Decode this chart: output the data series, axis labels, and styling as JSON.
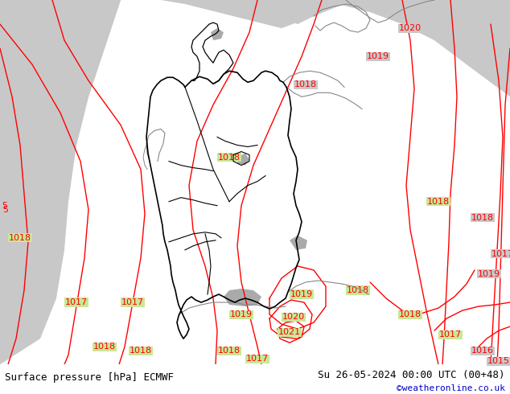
{
  "title_left": "Surface pressure [hPa] ECMWF",
  "title_right": "Su 26-05-2024 00:00 UTC (00+48)",
  "copyright": "©weatheronline.co.uk",
  "bg_color_land": "#c8e896",
  "bg_color_sea": "#c8c8c8",
  "bg_color_bottom": "#ffffff",
  "contour_color": "#ff0000",
  "border_color_main": "#000000",
  "border_color_other": "#888888",
  "text_color_main": "#000000",
  "text_color_copy": "#0000cc",
  "font_size_labels": 8,
  "font_size_title": 9,
  "fig_width": 6.34,
  "fig_height": 4.9,
  "dpi": 100
}
